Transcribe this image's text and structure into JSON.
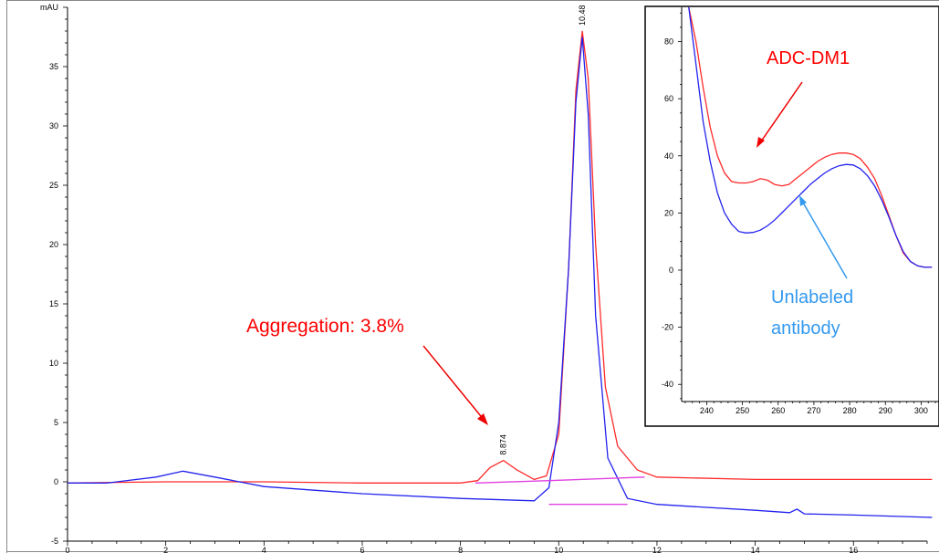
{
  "chart_data": [
    {
      "type": "line",
      "y_unit": "mAU",
      "xlim": [
        0,
        17.5
      ],
      "ylim": [
        -5,
        40
      ],
      "x_ticks": [
        "0",
        "2",
        "4",
        "6",
        "8",
        "10",
        "12",
        "14",
        "16"
      ],
      "y_ticks": [
        "-5",
        "0",
        "5",
        "10",
        "15",
        "20",
        "25",
        "30",
        "35"
      ],
      "peak_labels": [
        {
          "text": "8.874",
          "x": 8.874,
          "y": 1.8
        },
        {
          "text": "10.48",
          "x": 10.48,
          "y": 38.0
        }
      ],
      "series": [
        {
          "color": "#ff2a2a",
          "x": [
            0,
            2,
            4,
            6,
            8,
            8.35,
            8.6,
            8.874,
            9.15,
            9.5,
            9.75,
            10.0,
            10.2,
            10.35,
            10.48,
            10.6,
            10.75,
            10.95,
            11.2,
            11.6,
            12,
            14,
            16,
            17.6
          ],
          "y": [
            -0.1,
            0.0,
            0.0,
            -0.1,
            -0.1,
            0.1,
            1.2,
            1.8,
            1.0,
            0.2,
            0.5,
            4.0,
            18.0,
            33.0,
            38.0,
            34.0,
            20.0,
            8.0,
            3.0,
            1.0,
            0.4,
            0.2,
            0.2,
            0.2
          ]
        },
        {
          "color": "#2222ee",
          "x": [
            0,
            0.8,
            1.8,
            2.35,
            3.0,
            4,
            6,
            8,
            9.5,
            9.8,
            10.0,
            10.2,
            10.35,
            10.48,
            10.6,
            10.75,
            11.0,
            11.4,
            12,
            14,
            14.7,
            14.85,
            15.0,
            16,
            17.6
          ],
          "y": [
            -0.1,
            -0.1,
            0.4,
            0.9,
            0.4,
            -0.4,
            -1.0,
            -1.4,
            -1.6,
            -0.5,
            5.0,
            18.0,
            32.0,
            37.5,
            31.0,
            14.0,
            2.0,
            -1.4,
            -1.9,
            -2.4,
            -2.6,
            -2.3,
            -2.7,
            -2.8,
            -3.0
          ]
        },
        {
          "color": "#e040e0",
          "x": [
            8.3,
            9.8,
            11.75
          ],
          "y": [
            -0.1,
            0.1,
            0.4
          ]
        },
        {
          "color": "#e040e0",
          "x": [
            9.8,
            11.4
          ],
          "y": [
            -1.9,
            -1.9
          ]
        }
      ],
      "annotations": [
        {
          "text": "Aggregation: 3.8%",
          "color": "#ff0000"
        }
      ]
    },
    {
      "type": "line",
      "xlim": [
        233,
        305
      ],
      "ylim": [
        -46,
        92
      ],
      "x_ticks": [
        "240",
        "250",
        "260",
        "270",
        "280",
        "290",
        "300"
      ],
      "y_ticks": [
        "-40",
        "-20",
        "0",
        "20",
        "40",
        "60",
        "80"
      ],
      "series": [
        {
          "name": "ADC-DM1",
          "color": "#ff2a2a",
          "x": [
            235,
            237,
            239,
            241,
            243,
            245,
            247,
            249,
            251,
            253,
            255,
            257,
            259,
            261,
            263,
            265,
            267,
            269,
            271,
            273,
            275,
            277,
            279,
            281,
            283,
            285,
            287,
            289,
            291,
            293,
            295,
            297,
            299,
            301,
            303
          ],
          "y": [
            92,
            80,
            64,
            50,
            40,
            34,
            31,
            30.5,
            30.5,
            31,
            32,
            31.5,
            30,
            29.5,
            30,
            32,
            34,
            36,
            38,
            39.5,
            40.5,
            41,
            41,
            40.5,
            39,
            36,
            32,
            26,
            19,
            12,
            6,
            3,
            1.5,
            1,
            1
          ]
        },
        {
          "name": "Unlabeled antibody",
          "color": "#2222ee",
          "x": [
            235,
            237,
            239,
            241,
            243,
            245,
            247,
            249,
            251,
            253,
            255,
            257,
            259,
            261,
            263,
            265,
            267,
            269,
            271,
            273,
            275,
            277,
            279,
            281,
            283,
            285,
            287,
            289,
            291,
            293,
            295,
            297,
            299,
            301,
            303
          ],
          "y": [
            92,
            72,
            52,
            38,
            27,
            20,
            16,
            13.5,
            13,
            13.2,
            14,
            15.5,
            17.5,
            20,
            22.5,
            25,
            27.5,
            30,
            32,
            34,
            35.5,
            36.5,
            37,
            36.8,
            35.5,
            33,
            29.5,
            24.5,
            18.5,
            12,
            6.5,
            3,
            1.5,
            1,
            1
          ]
        }
      ],
      "annotations": [
        {
          "text": "ADC-DM1",
          "color": "#ff0000"
        },
        {
          "text": "Unlabeled",
          "color": "#3399ee"
        },
        {
          "text": "antibody",
          "color": "#3399ee"
        }
      ]
    }
  ]
}
